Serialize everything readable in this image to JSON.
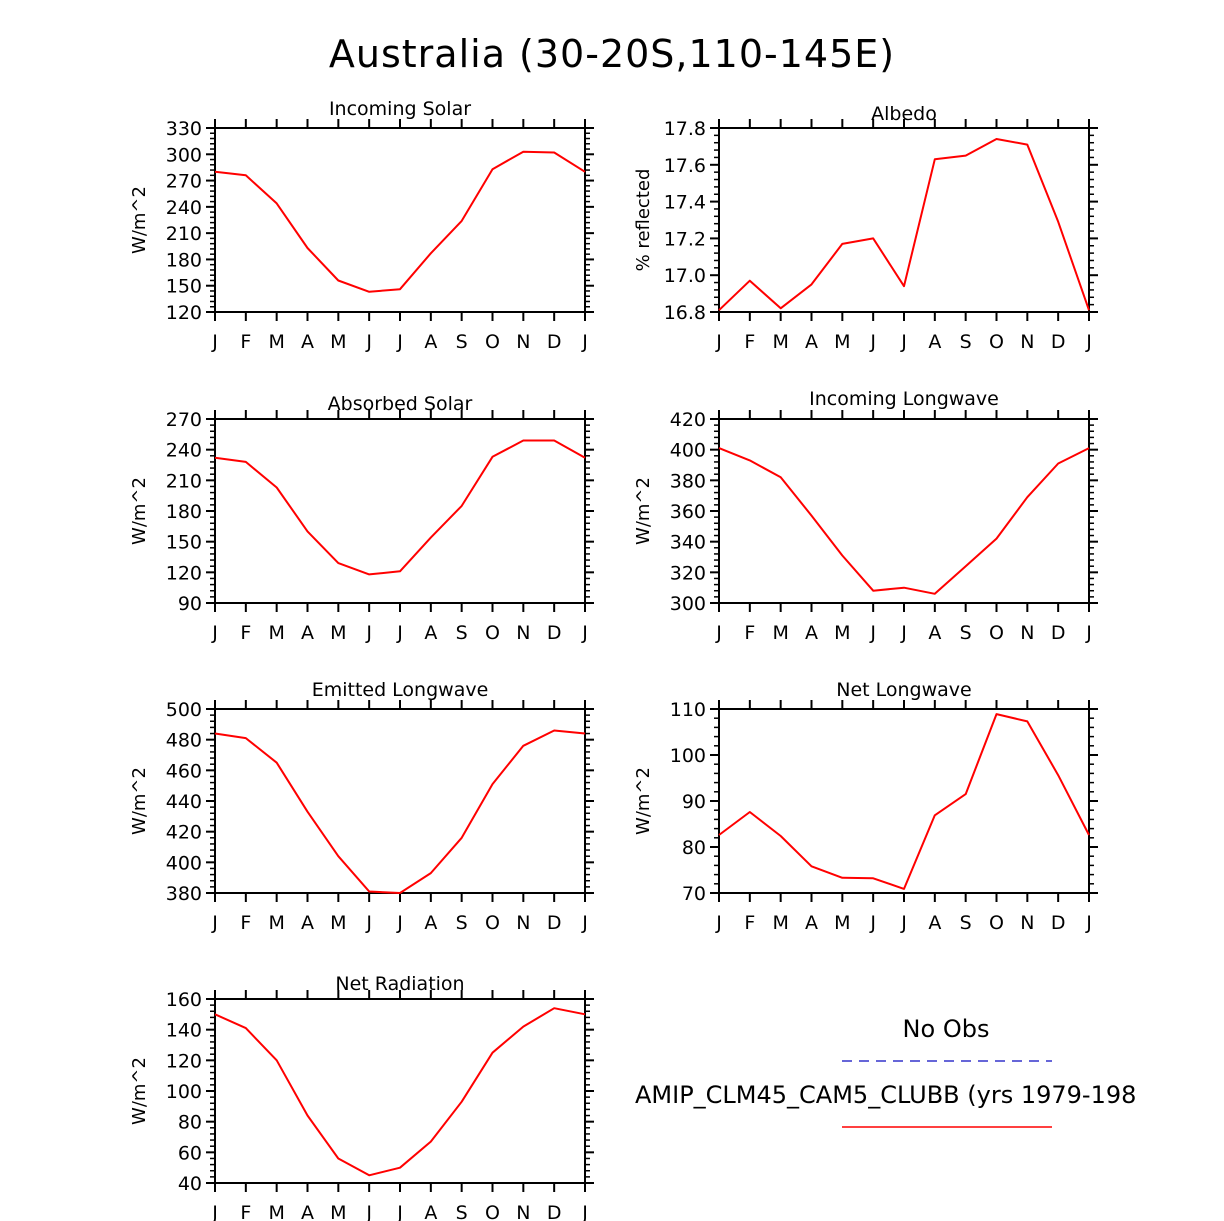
{
  "title": "Australia (30-20S,110-145E)",
  "months": [
    "J",
    "F",
    "M",
    "A",
    "M",
    "J",
    "J",
    "A",
    "S",
    "O",
    "N",
    "D",
    "J"
  ],
  "chart_data": [
    {
      "type": "line",
      "title": "Incoming Solar",
      "ylabel": "W/m^2",
      "ylim": [
        120,
        330
      ],
      "yticks": [
        120,
        150,
        180,
        210,
        240,
        270,
        300,
        330
      ],
      "ytick_labels": [
        "120",
        "150",
        "180",
        "210",
        "240",
        "270",
        "300",
        "330"
      ],
      "categories": [
        "J",
        "F",
        "M",
        "A",
        "M",
        "J",
        "J",
        "A",
        "S",
        "O",
        "N",
        "D",
        "J"
      ],
      "series": [
        {
          "values": [
            280,
            276,
            244,
            193,
            156,
            143,
            146,
            187,
            224,
            283,
            303,
            302,
            280
          ]
        }
      ]
    },
    {
      "type": "line",
      "title": "Albedo",
      "ylabel": "% reflected",
      "ylim": [
        16.8,
        17.8
      ],
      "yticks": [
        16.8,
        17.0,
        17.2,
        17.4,
        17.6,
        17.8
      ],
      "ytick_labels": [
        "16.8",
        "17.0",
        "17.2",
        "17.4",
        "17.6",
        "17.8"
      ],
      "categories": [
        "J",
        "F",
        "M",
        "A",
        "M",
        "J",
        "J",
        "A",
        "S",
        "O",
        "N",
        "D",
        "J"
      ],
      "series": [
        {
          "values": [
            16.81,
            16.97,
            16.82,
            16.95,
            17.17,
            17.2,
            16.94,
            17.63,
            17.65,
            17.74,
            17.71,
            17.29,
            16.81
          ]
        }
      ]
    },
    {
      "type": "line",
      "title": "Absorbed Solar",
      "ylabel": "W/m^2",
      "ylim": [
        90,
        270
      ],
      "yticks": [
        90,
        120,
        150,
        180,
        210,
        240,
        270
      ],
      "ytick_labels": [
        "90",
        "120",
        "150",
        "180",
        "210",
        "240",
        "270"
      ],
      "categories": [
        "J",
        "F",
        "M",
        "A",
        "M",
        "J",
        "J",
        "A",
        "S",
        "O",
        "N",
        "D",
        "J"
      ],
      "series": [
        {
          "values": [
            232,
            228,
            203,
            160,
            129,
            118,
            121,
            154,
            185,
            233,
            249,
            249,
            232
          ]
        }
      ]
    },
    {
      "type": "line",
      "title": "Incoming Longwave",
      "ylabel": "W/m^2",
      "ylim": [
        300,
        420
      ],
      "yticks": [
        300,
        320,
        340,
        360,
        380,
        400,
        420
      ],
      "ytick_labels": [
        "300",
        "320",
        "340",
        "360",
        "380",
        "400",
        "420"
      ],
      "categories": [
        "J",
        "F",
        "M",
        "A",
        "M",
        "J",
        "J",
        "A",
        "S",
        "O",
        "N",
        "D",
        "J"
      ],
      "series": [
        {
          "values": [
            401,
            393,
            382,
            357,
            331,
            308,
            310,
            306,
            324,
            342,
            369,
            391,
            401
          ]
        }
      ]
    },
    {
      "type": "line",
      "title": "Emitted Longwave",
      "ylabel": "W/m^2",
      "ylim": [
        380,
        500
      ],
      "yticks": [
        380,
        400,
        420,
        440,
        460,
        480,
        500
      ],
      "ytick_labels": [
        "380",
        "400",
        "420",
        "440",
        "460",
        "480",
        "500"
      ],
      "categories": [
        "J",
        "F",
        "M",
        "A",
        "M",
        "J",
        "J",
        "A",
        "S",
        "O",
        "N",
        "D",
        "J"
      ],
      "series": [
        {
          "values": [
            484,
            481,
            465,
            433,
            404,
            381,
            380,
            393,
            416,
            451,
            476,
            486,
            484
          ]
        }
      ]
    },
    {
      "type": "line",
      "title": "Net Longwave",
      "ylabel": "W/m^2",
      "ylim": [
        70,
        110
      ],
      "yticks": [
        70,
        80,
        90,
        100,
        110
      ],
      "ytick_labels": [
        "70",
        "80",
        "90",
        "100",
        "110"
      ],
      "categories": [
        "J",
        "F",
        "M",
        "A",
        "M",
        "J",
        "J",
        "A",
        "S",
        "O",
        "N",
        "D",
        "J"
      ],
      "series": [
        {
          "values": [
            82.6,
            87.6,
            82.4,
            75.8,
            73.3,
            73.2,
            70.9,
            86.9,
            91.5,
            108.9,
            107.3,
            95.6,
            82.6
          ]
        }
      ]
    },
    {
      "type": "line",
      "title": "Net Radiation",
      "ylabel": "W/m^2",
      "ylim": [
        40,
        160
      ],
      "yticks": [
        40,
        60,
        80,
        100,
        120,
        140,
        160
      ],
      "ytick_labels": [
        "40",
        "60",
        "80",
        "100",
        "120",
        "140",
        "160"
      ],
      "categories": [
        "J",
        "F",
        "M",
        "A",
        "M",
        "J",
        "J",
        "A",
        "S",
        "O",
        "N",
        "D",
        "J"
      ],
      "series": [
        {
          "values": [
            150,
            141,
            120,
            84,
            56,
            45,
            50,
            67,
            93,
            125,
            142,
            154,
            150
          ]
        }
      ]
    }
  ],
  "legend": {
    "obs_label": "No Obs",
    "obs_color": "#3333cc",
    "model_label": "AMIP_CLM45_CAM5_CLUBB (yrs 1979-198",
    "model_color": "#ff0000"
  },
  "line_color": "#ff0000"
}
